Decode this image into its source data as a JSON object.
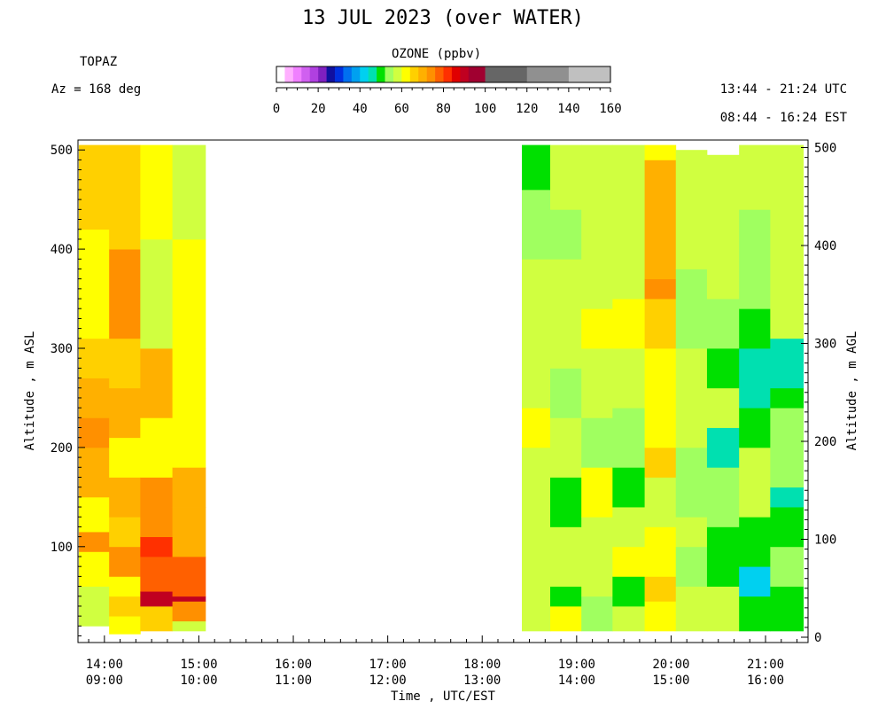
{
  "title": "13 JUL 2023 (over WATER)",
  "instrument": "TOPAZ",
  "azimuth": "Az = 168 deg",
  "utc_range": "13:44 - 21:24 UTC",
  "est_range": "08:44 - 16:24 EST",
  "colorbar": {
    "title": "OZONE (ppbv)",
    "ticks": [
      0,
      20,
      40,
      60,
      80,
      100,
      120,
      140,
      160
    ],
    "range": [
      0,
      160
    ],
    "bins": [
      {
        "from": 0,
        "to": 4,
        "color": "#ffffff"
      },
      {
        "from": 4,
        "to": 8,
        "color": "#ffb0ff"
      },
      {
        "from": 8,
        "to": 12,
        "color": "#f080ff"
      },
      {
        "from": 12,
        "to": 16,
        "color": "#d060f0"
      },
      {
        "from": 16,
        "to": 20,
        "color": "#b040e0"
      },
      {
        "from": 20,
        "to": 24,
        "color": "#8020c0"
      },
      {
        "from": 24,
        "to": 28,
        "color": "#1010a0"
      },
      {
        "from": 28,
        "to": 32,
        "color": "#0030e0"
      },
      {
        "from": 32,
        "to": 36,
        "color": "#0070f0"
      },
      {
        "from": 36,
        "to": 40,
        "color": "#00a0f0"
      },
      {
        "from": 40,
        "to": 44,
        "color": "#00d0f0"
      },
      {
        "from": 44,
        "to": 48,
        "color": "#00e0b0"
      },
      {
        "from": 48,
        "to": 52,
        "color": "#00e000"
      },
      {
        "from": 52,
        "to": 56,
        "color": "#a0ff60"
      },
      {
        "from": 56,
        "to": 60,
        "color": "#d0ff40"
      },
      {
        "from": 60,
        "to": 64,
        "color": "#ffff00"
      },
      {
        "from": 64,
        "to": 68,
        "color": "#ffd000"
      },
      {
        "from": 68,
        "to": 72,
        "color": "#ffb000"
      },
      {
        "from": 72,
        "to": 76,
        "color": "#ff9000"
      },
      {
        "from": 76,
        "to": 80,
        "color": "#ff6000"
      },
      {
        "from": 80,
        "to": 84,
        "color": "#ff3000"
      },
      {
        "from": 84,
        "to": 88,
        "color": "#e00000"
      },
      {
        "from": 88,
        "to": 92,
        "color": "#c00020"
      },
      {
        "from": 92,
        "to": 96,
        "color": "#a00030"
      },
      {
        "from": 96,
        "to": 100,
        "color": "#a00030"
      },
      {
        "from": 100,
        "to": 120,
        "color": "#666666"
      },
      {
        "from": 120,
        "to": 140,
        "color": "#909090"
      },
      {
        "from": 140,
        "to": 160,
        "color": "#c0c0c0"
      }
    ]
  },
  "chart_data": {
    "type": "heatmap",
    "xlabel": "Time , UTC/EST",
    "ylabel_left": "Altitude , m ASL",
    "ylabel_right": "Altitude , m AGL",
    "xlim_utc_hours": [
      13.72,
      21.45
    ],
    "ylim_left": [
      6,
      510
    ],
    "ylim_right": [
      0,
      505
    ],
    "y_ticks_left": [
      100,
      200,
      300,
      400,
      500
    ],
    "y_ticks_right": [
      0,
      100,
      200,
      300,
      400,
      500
    ],
    "x_ticks": [
      {
        "utc": "14:00",
        "est": "09:00",
        "hour": 14
      },
      {
        "utc": "15:00",
        "est": "10:00",
        "hour": 15
      },
      {
        "utc": "16:00",
        "est": "11:00",
        "hour": 16
      },
      {
        "utc": "17:00",
        "est": "12:00",
        "hour": 17
      },
      {
        "utc": "18:00",
        "est": "13:00",
        "hour": 18
      },
      {
        "utc": "19:00",
        "est": "14:00",
        "hour": 19
      },
      {
        "utc": "20:00",
        "est": "15:00",
        "hour": 20
      },
      {
        "utc": "21:00",
        "est": "16:00",
        "hour": 21
      }
    ],
    "columns": [
      {
        "t0": 13.73,
        "t1": 14.05,
        "profile": [
          [
            20,
            45,
            58
          ],
          [
            45,
            60,
            56
          ],
          [
            60,
            95,
            62
          ],
          [
            95,
            115,
            72
          ],
          [
            115,
            150,
            62
          ],
          [
            150,
            200,
            68
          ],
          [
            200,
            230,
            72
          ],
          [
            230,
            270,
            70
          ],
          [
            270,
            310,
            65
          ],
          [
            310,
            420,
            62
          ],
          [
            420,
            505,
            64
          ]
        ]
      },
      {
        "t0": 14.05,
        "t1": 14.38,
        "profile": [
          [
            12,
            30,
            62
          ],
          [
            30,
            50,
            66
          ],
          [
            50,
            70,
            62
          ],
          [
            70,
            100,
            72
          ],
          [
            100,
            130,
            66
          ],
          [
            130,
            170,
            68
          ],
          [
            170,
            210,
            62
          ],
          [
            210,
            260,
            70
          ],
          [
            260,
            310,
            66
          ],
          [
            310,
            400,
            72
          ],
          [
            400,
            505,
            66
          ]
        ]
      },
      {
        "t0": 14.38,
        "t1": 14.72,
        "profile": [
          [
            15,
            40,
            66
          ],
          [
            40,
            55,
            88
          ],
          [
            55,
            90,
            78
          ],
          [
            90,
            110,
            80
          ],
          [
            110,
            170,
            72
          ],
          [
            170,
            230,
            62
          ],
          [
            230,
            300,
            70
          ],
          [
            300,
            350,
            58
          ],
          [
            350,
            410,
            56
          ],
          [
            410,
            505,
            62
          ]
        ]
      },
      {
        "t0": 14.72,
        "t1": 15.07,
        "profile": [
          [
            15,
            25,
            56
          ],
          [
            25,
            45,
            72
          ],
          [
            45,
            50,
            88
          ],
          [
            50,
            90,
            76
          ],
          [
            90,
            140,
            70
          ],
          [
            140,
            180,
            68
          ],
          [
            180,
            250,
            62
          ],
          [
            250,
            300,
            62
          ],
          [
            300,
            410,
            62
          ],
          [
            410,
            505,
            56
          ]
        ]
      },
      {
        "t0": 18.42,
        "t1": 18.72,
        "profile": [
          [
            15,
            70,
            56
          ],
          [
            70,
            100,
            58
          ],
          [
            100,
            140,
            56
          ],
          [
            140,
            200,
            58
          ],
          [
            200,
            240,
            62
          ],
          [
            240,
            300,
            56
          ],
          [
            300,
            360,
            58
          ],
          [
            360,
            390,
            56
          ],
          [
            390,
            460,
            54
          ],
          [
            460,
            505,
            50
          ]
        ]
      },
      {
        "t0": 18.72,
        "t1": 19.05,
        "profile": [
          [
            15,
            40,
            60
          ],
          [
            40,
            60,
            50
          ],
          [
            60,
            120,
            56
          ],
          [
            120,
            170,
            50
          ],
          [
            170,
            230,
            56
          ],
          [
            230,
            280,
            54
          ],
          [
            280,
            390,
            58
          ],
          [
            390,
            440,
            54
          ],
          [
            440,
            505,
            56
          ]
        ]
      },
      {
        "t0": 19.05,
        "t1": 19.38,
        "profile": [
          [
            15,
            50,
            54
          ],
          [
            50,
            90,
            58
          ],
          [
            90,
            130,
            56
          ],
          [
            130,
            180,
            62
          ],
          [
            180,
            230,
            54
          ],
          [
            230,
            300,
            56
          ],
          [
            300,
            340,
            62
          ],
          [
            340,
            420,
            58
          ],
          [
            420,
            505,
            56
          ]
        ]
      },
      {
        "t0": 19.38,
        "t1": 19.72,
        "profile": [
          [
            15,
            40,
            56
          ],
          [
            40,
            70,
            50
          ],
          [
            70,
            100,
            62
          ],
          [
            100,
            140,
            56
          ],
          [
            140,
            180,
            50
          ],
          [
            180,
            240,
            54
          ],
          [
            240,
            300,
            58
          ],
          [
            300,
            350,
            62
          ],
          [
            350,
            505,
            58
          ]
        ]
      },
      {
        "t0": 19.72,
        "t1": 20.05,
        "profile": [
          [
            15,
            45,
            62
          ],
          [
            45,
            70,
            66
          ],
          [
            70,
            120,
            62
          ],
          [
            120,
            170,
            56
          ],
          [
            170,
            200,
            66
          ],
          [
            200,
            250,
            62
          ],
          [
            250,
            300,
            62
          ],
          [
            300,
            350,
            66
          ],
          [
            350,
            370,
            72
          ],
          [
            370,
            490,
            68
          ],
          [
            490,
            505,
            62
          ]
        ]
      },
      {
        "t0": 20.05,
        "t1": 20.38,
        "profile": [
          [
            15,
            60,
            56
          ],
          [
            60,
            100,
            54
          ],
          [
            100,
            130,
            58
          ],
          [
            130,
            200,
            54
          ],
          [
            200,
            250,
            58
          ],
          [
            250,
            300,
            56
          ],
          [
            300,
            380,
            54
          ],
          [
            380,
            500,
            56
          ]
        ]
      },
      {
        "t0": 20.38,
        "t1": 20.72,
        "profile": [
          [
            15,
            60,
            56
          ],
          [
            60,
            120,
            50
          ],
          [
            120,
            180,
            54
          ],
          [
            180,
            220,
            46
          ],
          [
            220,
            260,
            56
          ],
          [
            260,
            300,
            50
          ],
          [
            300,
            350,
            54
          ],
          [
            350,
            495,
            56
          ]
        ]
      },
      {
        "t0": 20.72,
        "t1": 21.05,
        "profile": [
          [
            15,
            50,
            50
          ],
          [
            50,
            80,
            40
          ],
          [
            80,
            130,
            50
          ],
          [
            130,
            200,
            58
          ],
          [
            200,
            240,
            48
          ],
          [
            240,
            300,
            44
          ],
          [
            300,
            340,
            50
          ],
          [
            340,
            440,
            52
          ],
          [
            440,
            505,
            58
          ]
        ]
      },
      {
        "t0": 21.05,
        "t1": 21.4,
        "profile": [
          [
            15,
            60,
            50
          ],
          [
            60,
            100,
            54
          ],
          [
            100,
            140,
            50
          ],
          [
            140,
            160,
            46
          ],
          [
            160,
            240,
            54
          ],
          [
            240,
            260,
            50
          ],
          [
            260,
            310,
            44
          ],
          [
            310,
            400,
            56
          ],
          [
            400,
            440,
            58
          ],
          [
            440,
            505,
            56
          ]
        ]
      }
    ]
  }
}
